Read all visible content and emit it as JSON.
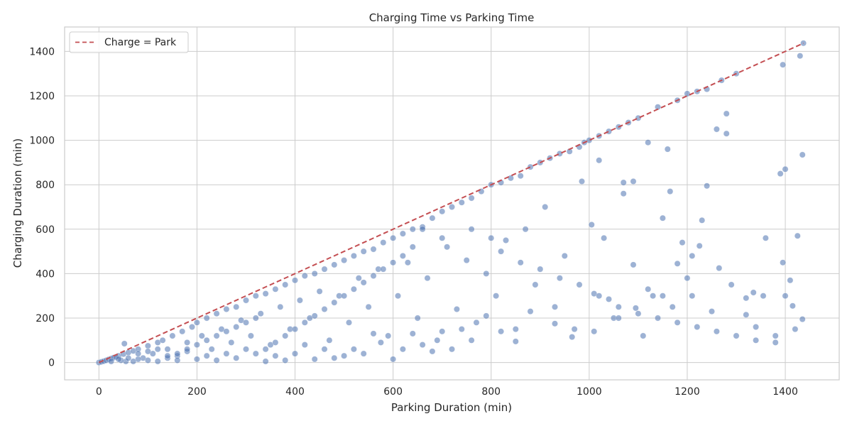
{
  "chart_data": {
    "type": "scatter",
    "title": "Charging Time vs Parking Time",
    "xlabel": "Parking Duration (min)",
    "ylabel": "Charging Duration (min)",
    "xlim": [
      -70,
      1510
    ],
    "ylim": [
      -78,
      1510
    ],
    "xticks": [
      0,
      200,
      400,
      600,
      800,
      1000,
      1200,
      1400
    ],
    "yticks": [
      0,
      200,
      400,
      600,
      800,
      1000,
      1200,
      1400
    ],
    "grid": true,
    "legend": {
      "position": "top-left",
      "entries": [
        "Charge = Park"
      ]
    },
    "colors": {
      "points": "#4c72b0",
      "reference_line": "#c44e52"
    },
    "reference_line": {
      "name": "Charge = Park",
      "x": [
        0,
        1437
      ],
      "y": [
        0,
        1437
      ],
      "style": "dashed"
    },
    "series": [
      {
        "points": [
          [
            0,
            0
          ],
          [
            5,
            3
          ],
          [
            10,
            6
          ],
          [
            15,
            10
          ],
          [
            20,
            14
          ],
          [
            25,
            18
          ],
          [
            30,
            22
          ],
          [
            40,
            30
          ],
          [
            50,
            38
          ],
          [
            52,
            85
          ],
          [
            55,
            5
          ],
          [
            60,
            45
          ],
          [
            70,
            52
          ],
          [
            80,
            60
          ],
          [
            90,
            20
          ],
          [
            100,
            75
          ],
          [
            110,
            40
          ],
          [
            120,
            90
          ],
          [
            130,
            100
          ],
          [
            140,
            60
          ],
          [
            150,
            120
          ],
          [
            160,
            30
          ],
          [
            170,
            140
          ],
          [
            180,
            90
          ],
          [
            190,
            160
          ],
          [
            200,
            180
          ],
          [
            210,
            120
          ],
          [
            220,
            200
          ],
          [
            230,
            60
          ],
          [
            240,
            220
          ],
          [
            250,
            150
          ],
          [
            260,
            240
          ],
          [
            270,
            90
          ],
          [
            280,
            250
          ],
          [
            290,
            190
          ],
          [
            300,
            280
          ],
          [
            310,
            120
          ],
          [
            320,
            300
          ],
          [
            330,
            220
          ],
          [
            340,
            310
          ],
          [
            350,
            80
          ],
          [
            360,
            330
          ],
          [
            370,
            250
          ],
          [
            380,
            350
          ],
          [
            390,
            150
          ],
          [
            400,
            370
          ],
          [
            410,
            280
          ],
          [
            420,
            390
          ],
          [
            430,
            200
          ],
          [
            440,
            400
          ],
          [
            450,
            320
          ],
          [
            460,
            420
          ],
          [
            470,
            100
          ],
          [
            480,
            440
          ],
          [
            490,
            300
          ],
          [
            500,
            460
          ],
          [
            510,
            180
          ],
          [
            520,
            480
          ],
          [
            530,
            380
          ],
          [
            540,
            500
          ],
          [
            550,
            250
          ],
          [
            560,
            510
          ],
          [
            570,
            420
          ],
          [
            580,
            540
          ],
          [
            590,
            120
          ],
          [
            600,
            560
          ],
          [
            610,
            300
          ],
          [
            620,
            580
          ],
          [
            630,
            450
          ],
          [
            640,
            600
          ],
          [
            650,
            200
          ],
          [
            660,
            610
          ],
          [
            670,
            380
          ],
          [
            680,
            650
          ],
          [
            690,
            100
          ],
          [
            700,
            680
          ],
          [
            710,
            520
          ],
          [
            720,
            700
          ],
          [
            730,
            240
          ],
          [
            740,
            720
          ],
          [
            750,
            460
          ],
          [
            760,
            740
          ],
          [
            770,
            180
          ],
          [
            780,
            770
          ],
          [
            790,
            400
          ],
          [
            800,
            800
          ],
          [
            810,
            300
          ],
          [
            820,
            810
          ],
          [
            830,
            550
          ],
          [
            840,
            830
          ],
          [
            850,
            150
          ],
          [
            860,
            840
          ],
          [
            870,
            600
          ],
          [
            880,
            880
          ],
          [
            890,
            350
          ],
          [
            900,
            900
          ],
          [
            910,
            700
          ],
          [
            920,
            920
          ],
          [
            930,
            250
          ],
          [
            940,
            940
          ],
          [
            950,
            480
          ],
          [
            960,
            950
          ],
          [
            970,
            150
          ],
          [
            980,
            970
          ],
          [
            990,
            990
          ],
          [
            1000,
            1000
          ],
          [
            1010,
            310
          ],
          [
            1020,
            1020
          ],
          [
            1030,
            560
          ],
          [
            1040,
            1040
          ],
          [
            1050,
            200
          ],
          [
            1060,
            1060
          ],
          [
            1070,
            760
          ],
          [
            1080,
            1080
          ],
          [
            1090,
            440
          ],
          [
            1100,
            1100
          ],
          [
            1110,
            120
          ],
          [
            1120,
            990
          ],
          [
            1130,
            300
          ],
          [
            1140,
            1150
          ],
          [
            1150,
            650
          ],
          [
            1160,
            960
          ],
          [
            1170,
            250
          ],
          [
            1180,
            1180
          ],
          [
            1190,
            540
          ],
          [
            1200,
            1210
          ],
          [
            1210,
            300
          ],
          [
            1220,
            1220
          ],
          [
            1230,
            640
          ],
          [
            1240,
            1230
          ],
          [
            1250,
            230
          ],
          [
            1270,
            1270
          ],
          [
            1280,
            1120
          ],
          [
            1290,
            350
          ],
          [
            1300,
            1300
          ],
          [
            1320,
            290
          ],
          [
            1340,
            160
          ],
          [
            1360,
            560
          ],
          [
            1380,
            120
          ],
          [
            1390,
            850
          ],
          [
            1395,
            1340
          ],
          [
            1400,
            870
          ],
          [
            1410,
            370
          ],
          [
            1420,
            150
          ],
          [
            1425,
            570
          ],
          [
            1430,
            1380
          ],
          [
            1437,
            1437
          ],
          [
            1435,
            935
          ],
          [
            1435,
            195
          ],
          [
            1280,
            1030
          ],
          [
            1260,
            1050
          ],
          [
            1240,
            795
          ],
          [
            1165,
            770
          ],
          [
            1090,
            815
          ],
          [
            1070,
            810
          ],
          [
            1020,
            910
          ],
          [
            985,
            815
          ],
          [
            1005,
            620
          ],
          [
            1180,
            445
          ],
          [
            1210,
            480
          ],
          [
            1225,
            525
          ],
          [
            1335,
            315
          ],
          [
            1355,
            300
          ],
          [
            1400,
            300
          ],
          [
            1415,
            255
          ],
          [
            1395,
            450
          ],
          [
            1320,
            215
          ],
          [
            1265,
            425
          ],
          [
            1200,
            380
          ],
          [
            1150,
            300
          ],
          [
            1120,
            330
          ],
          [
            1095,
            245
          ],
          [
            1060,
            200
          ],
          [
            1040,
            285
          ],
          [
            1010,
            140
          ],
          [
            965,
            115
          ],
          [
            930,
            175
          ],
          [
            880,
            230
          ],
          [
            850,
            95
          ],
          [
            820,
            140
          ],
          [
            790,
            210
          ],
          [
            760,
            100
          ],
          [
            740,
            150
          ],
          [
            720,
            60
          ],
          [
            700,
            140
          ],
          [
            680,
            50
          ],
          [
            660,
            80
          ],
          [
            640,
            130
          ],
          [
            620,
            60
          ],
          [
            600,
            15
          ],
          [
            575,
            90
          ],
          [
            560,
            130
          ],
          [
            540,
            40
          ],
          [
            520,
            60
          ],
          [
            500,
            30
          ],
          [
            480,
            20
          ],
          [
            460,
            60
          ],
          [
            440,
            15
          ],
          [
            420,
            80
          ],
          [
            400,
            40
          ],
          [
            380,
            10
          ],
          [
            360,
            30
          ],
          [
            340,
            5
          ],
          [
            320,
            40
          ],
          [
            300,
            60
          ],
          [
            280,
            20
          ],
          [
            260,
            40
          ],
          [
            240,
            10
          ],
          [
            220,
            30
          ],
          [
            200,
            15
          ],
          [
            180,
            50
          ],
          [
            160,
            10
          ],
          [
            140,
            20
          ],
          [
            120,
            5
          ],
          [
            100,
            10
          ],
          [
            80,
            15
          ],
          [
            70,
            5
          ],
          [
            45,
            10
          ],
          [
            35,
            25
          ],
          [
            25,
            5
          ],
          [
            660,
            600
          ],
          [
            700,
            560
          ],
          [
            760,
            600
          ],
          [
            800,
            560
          ],
          [
            820,
            500
          ],
          [
            860,
            450
          ],
          [
            900,
            420
          ],
          [
            940,
            380
          ],
          [
            980,
            350
          ],
          [
            1020,
            300
          ],
          [
            1060,
            250
          ],
          [
            1100,
            220
          ],
          [
            1140,
            200
          ],
          [
            1180,
            180
          ],
          [
            1220,
            160
          ],
          [
            1260,
            140
          ],
          [
            1300,
            120
          ],
          [
            1340,
            100
          ],
          [
            1380,
            90
          ],
          [
            640,
            520
          ],
          [
            620,
            480
          ],
          [
            600,
            450
          ],
          [
            580,
            420
          ],
          [
            560,
            390
          ],
          [
            540,
            360
          ],
          [
            520,
            330
          ],
          [
            500,
            300
          ],
          [
            480,
            270
          ],
          [
            460,
            240
          ],
          [
            440,
            210
          ],
          [
            420,
            180
          ],
          [
            400,
            150
          ],
          [
            380,
            120
          ],
          [
            360,
            90
          ],
          [
            340,
            60
          ],
          [
            320,
            200
          ],
          [
            300,
            180
          ],
          [
            280,
            160
          ],
          [
            260,
            140
          ],
          [
            240,
            120
          ],
          [
            220,
            100
          ],
          [
            200,
            80
          ],
          [
            180,
            60
          ],
          [
            160,
            40
          ],
          [
            140,
            30
          ],
          [
            120,
            60
          ],
          [
            100,
            50
          ],
          [
            80,
            40
          ],
          [
            60,
            20
          ],
          [
            40,
            15
          ]
        ]
      }
    ]
  }
}
